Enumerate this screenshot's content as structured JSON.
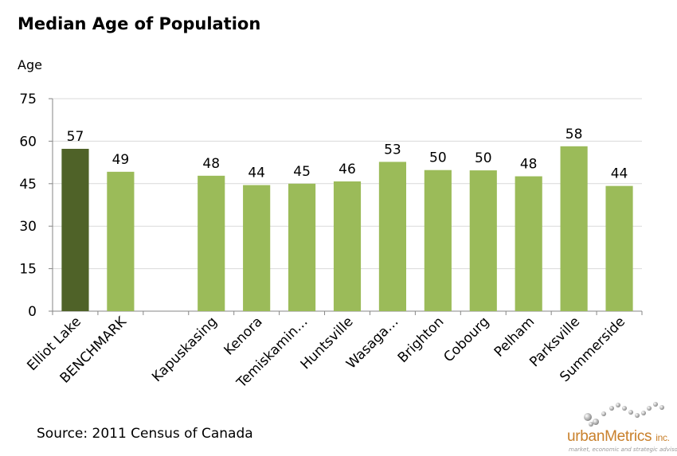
{
  "title": "Median Age of Population",
  "ylabel": "Age",
  "source": "Source: 2011 Census of Canada",
  "logo": {
    "name": "urbanMetrics",
    "suffix": "inc.",
    "tagline": "market, economic and strategic advisors"
  },
  "colors": {
    "highlight": "#4f6228",
    "bar": "#9bbb59",
    "grid": "#d9d9d9",
    "axis": "#868686"
  },
  "chart_data": {
    "type": "bar",
    "title": "Median Age of Population",
    "xlabel": "",
    "ylabel": "Age",
    "ylim": [
      0,
      75
    ],
    "yticks": [
      0,
      15,
      30,
      45,
      60,
      75
    ],
    "grid": true,
    "categories": [
      "Elliot Lake",
      "BENCHMARK",
      "",
      "Kapuskasing",
      "Kenora",
      "Temiskamin…",
      "Huntsville",
      "Wasaga…",
      "Brighton",
      "Cobourg",
      "Pelham",
      "Parksville",
      "Summerside"
    ],
    "values": [
      57.3,
      49.2,
      null,
      47.8,
      44.5,
      45.0,
      45.8,
      52.7,
      49.8,
      49.7,
      47.6,
      58.2,
      44.2
    ],
    "data_labels": [
      "57",
      "49",
      "",
      "48",
      "44",
      "45",
      "46",
      "53",
      "50",
      "50",
      "48",
      "58",
      "44"
    ],
    "highlight_index": 0
  }
}
